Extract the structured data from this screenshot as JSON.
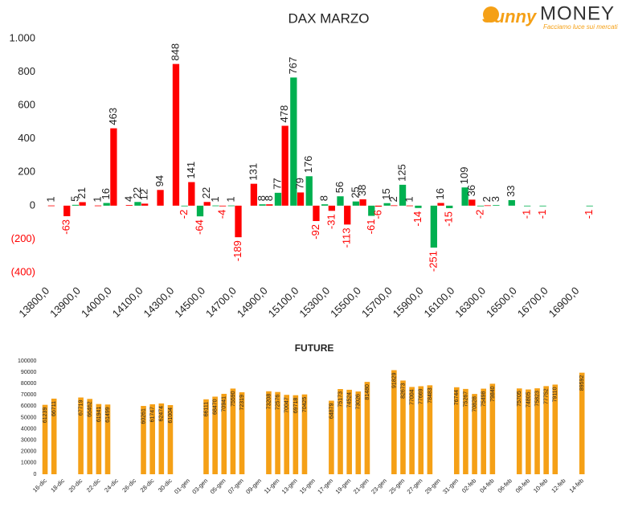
{
  "logo": {
    "brand": "Sunny",
    "brand2": "MONEY",
    "tagline": "Facciamo luce sui mercati"
  },
  "chart_data": [
    {
      "type": "bar",
      "title": "DAX MARZO",
      "categories": [
        "13800,0",
        null,
        "13900,0",
        null,
        "14000,0",
        null,
        "14100,0",
        null,
        "14300,0",
        null,
        "14500,0",
        null,
        "14700,0",
        null,
        "14900,0",
        null,
        "15100,0",
        null,
        "15300,0",
        null,
        "15500,0",
        null,
        "15700,0",
        null,
        "15900,0",
        null,
        "16100,0",
        null,
        "16300,0",
        null,
        "16500,0",
        null,
        "16700,0",
        null,
        "16900,0",
        null
      ],
      "series": [
        {
          "color": "#00b050",
          "values": [
            null,
            null,
            5,
            null,
            16,
            null,
            22,
            null,
            null,
            -2,
            -64,
            1,
            1,
            null,
            8,
            77,
            767,
            176,
            8,
            56,
            25,
            -61,
            15,
            125,
            -14,
            -251,
            -15,
            109,
            -2,
            3,
            33,
            -1,
            -1,
            null,
            null,
            -1
          ]
        },
        {
          "color": "#ff0000",
          "values": [
            1,
            -63,
            21,
            1,
            463,
            4,
            12,
            94,
            848,
            141,
            22,
            -4,
            -189,
            131,
            8,
            478,
            79,
            -92,
            -31,
            -113,
            38,
            -6,
            2,
            1,
            null,
            16,
            null,
            36,
            2,
            null,
            null,
            null,
            null,
            null,
            null,
            null
          ]
        }
      ],
      "ylim": [
        -400,
        1000
      ],
      "yticks": [
        {
          "value": -400,
          "label": "(400)"
        },
        {
          "value": -200,
          "label": "(200)"
        },
        0,
        200,
        400,
        600,
        800,
        {
          "value": 1000,
          "label": "1.000"
        }
      ],
      "negative_label_color": "#ff0000",
      "grid": false
    },
    {
      "type": "bar",
      "title": "FUTURE",
      "categories": [
        "16-dic",
        null,
        "18-dic",
        null,
        "20-dic",
        null,
        "22-dic",
        null,
        "24-dic",
        null,
        "26-dic",
        null,
        "28-dic",
        null,
        "30-dic",
        null,
        "01-gen",
        null,
        "03-gen",
        null,
        "05-gen",
        null,
        "07-gen",
        null,
        "09-gen",
        null,
        "11-gen",
        null,
        "13-gen",
        null,
        "15-gen",
        null,
        "17-gen",
        null,
        "19-gen",
        null,
        "21-gen",
        null,
        "23-gen",
        null,
        "25-gen",
        null,
        "27-gen",
        null,
        "29-gen",
        null,
        "31-gen",
        null,
        "02-feb",
        null,
        "04-feb",
        null,
        "06-feb",
        null,
        "08-feb",
        null,
        "10-feb",
        null,
        "12-feb",
        null,
        "14-feb"
      ],
      "series": [
        {
          "color": "#f5a016",
          "values": [
            61239,
            66711,
            null,
            null,
            67719,
            66462,
            61941,
            61499,
            null,
            null,
            null,
            60261,
            61747,
            62474,
            61004,
            null,
            null,
            null,
            66111,
            68470,
            70941,
            75590,
            72319,
            null,
            null,
            73208,
            72576,
            70047,
            69718,
            70425,
            null,
            null,
            64879,
            75173,
            74524,
            73026,
            81480,
            null,
            null,
            91829,
            82673,
            77004,
            77669,
            78483,
            null,
            null,
            76744,
            75267,
            70828,
            75498,
            79840,
            null,
            null,
            75705,
            74805,
            75823,
            77752,
            79110,
            null,
            null,
            89592
          ]
        }
      ],
      "ylim": [
        0,
        100000
      ],
      "yticks": [
        0,
        10000,
        20000,
        30000,
        40000,
        50000,
        60000,
        70000,
        80000,
        90000,
        100000
      ],
      "grid": false
    }
  ]
}
